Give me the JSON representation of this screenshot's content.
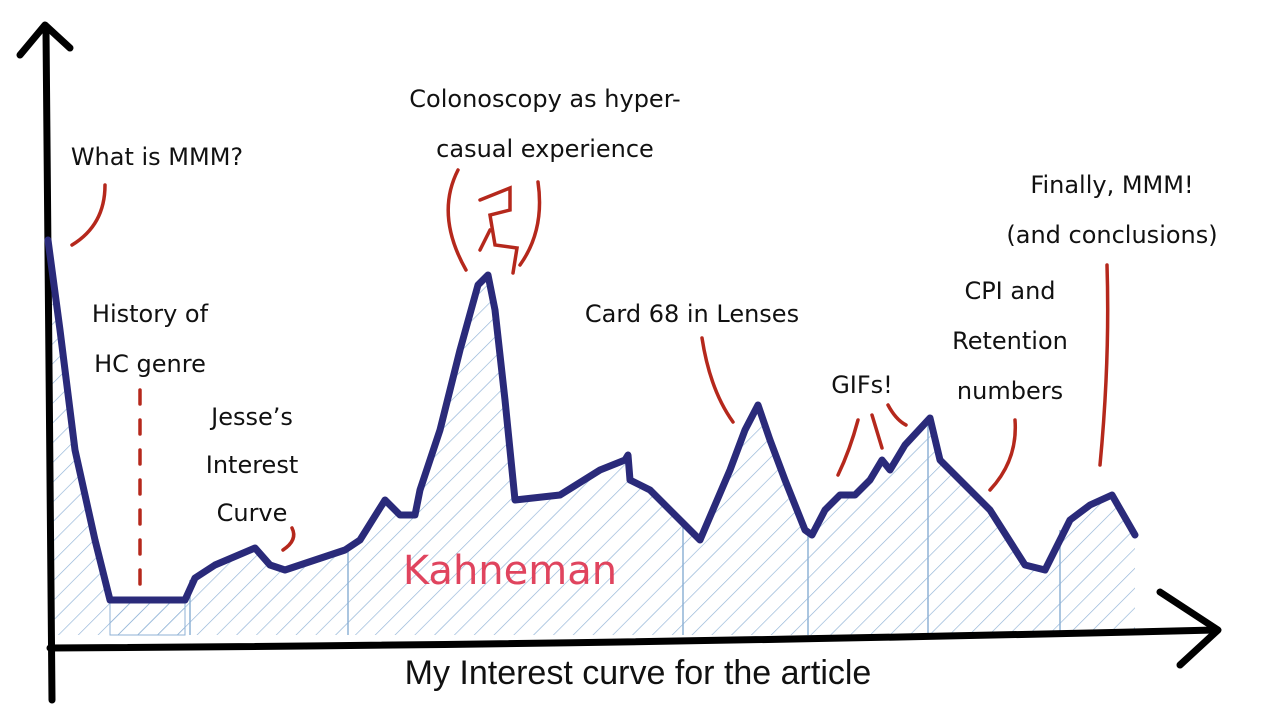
{
  "title": "My Interest curve for the article",
  "label": "Kahneman",
  "annotations": [
    {
      "lines": [
        "What is MMM?"
      ]
    },
    {
      "lines": [
        "History of",
        "HC genre"
      ]
    },
    {
      "lines": [
        "Jesse’s",
        "Interest",
        "Curve"
      ]
    },
    {
      "lines": [
        "Colonoscopy as hyper-",
        "casual experience"
      ]
    },
    {
      "lines": [
        "Card 68 in Lenses"
      ]
    },
    {
      "lines": [
        "GIFs!"
      ]
    },
    {
      "lines": [
        "CPI and",
        "Retention",
        "numbers"
      ]
    },
    {
      "lines": [
        "Finally, MMM!",
        "(and conclusions)"
      ]
    }
  ]
}
